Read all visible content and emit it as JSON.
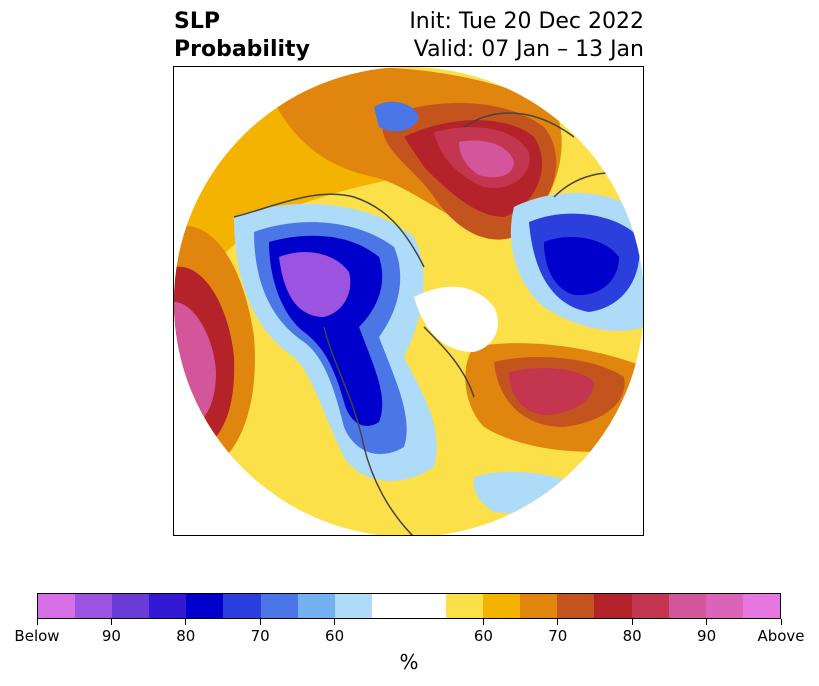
{
  "title": {
    "left_line1": "SLP",
    "left_line2": "Probability",
    "right_line1": "Init: Tue 20 Dec 2022",
    "right_line2": "Valid: 07 Jan – 13 Jan"
  },
  "map": {
    "projection": "north polar stereographic",
    "boundaries": "coastlines, country and state/province borders",
    "colors": {
      "below_max": "#d66ee6",
      "below_90": "#9c54e0",
      "below_80": "#3318d4",
      "below_70": "#2a3fdb",
      "below_60": "#75b0f0",
      "neutral": "#ffffff",
      "above_60": "#fce04a",
      "above_70": "#e0860f",
      "above_80": "#b4232a",
      "above_90": "#d4569a",
      "above_max": "#e677e0"
    }
  },
  "colorbar": {
    "colors": [
      "#d66ee6",
      "#9c54e0",
      "#6b3bd8",
      "#3318d4",
      "#0000cc",
      "#2a3fdb",
      "#4b76e6",
      "#75b0f0",
      "#aedbf8",
      "#ffffff",
      "#ffffff",
      "#fce04a",
      "#f4b300",
      "#e0860f",
      "#c4541e",
      "#b4232a",
      "#c43550",
      "#d4569a",
      "#dc64b8",
      "#e677e0"
    ],
    "tick_labels": [
      "Below",
      "90",
      "80",
      "70",
      "60",
      "60",
      "70",
      "80",
      "90",
      "Above"
    ],
    "units": "%"
  }
}
